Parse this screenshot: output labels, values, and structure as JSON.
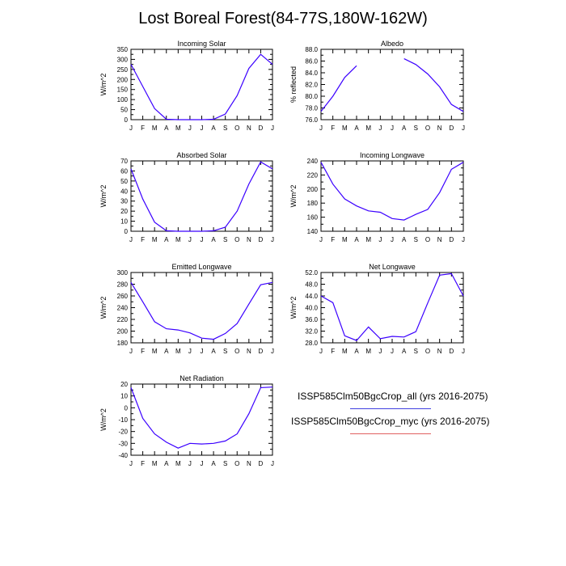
{
  "title": "Lost Boreal Forest(84-77S,180W-162W)",
  "legend": [
    {
      "label": "ISSP585Clm50BgcCrop_all (yrs 2016-2075)",
      "color": "#4040e0"
    },
    {
      "label": "ISSP585Clm50BgcCrop_myc (yrs 2016-2075)",
      "color": "#e06060"
    }
  ],
  "chart_data": [
    {
      "type": "line",
      "title": "Incoming Solar",
      "ylabel": "W/m^2",
      "x": [
        "J",
        "F",
        "M",
        "A",
        "M",
        "J",
        "J",
        "A",
        "S",
        "O",
        "N",
        "D",
        "J"
      ],
      "ylim": [
        0,
        350
      ],
      "yticks": [
        "0",
        "50",
        "100",
        "150",
        "200",
        "250",
        "300",
        "350"
      ],
      "series": [
        {
          "values": [
            275,
            165,
            55,
            2,
            0,
            0,
            0,
            2,
            28,
            120,
            255,
            325,
            275
          ],
          "color": "#3b00ff"
        }
      ]
    },
    {
      "type": "line",
      "title": "Albedo",
      "ylabel": "% reflected",
      "x": [
        "J",
        "F",
        "M",
        "A",
        "M",
        "J",
        "J",
        "A",
        "S",
        "O",
        "N",
        "D",
        "J"
      ],
      "ylim": [
        76,
        88
      ],
      "yticks": [
        "76.0",
        "78.0",
        "80.0",
        "82.0",
        "84.0",
        "86.0",
        "88.0"
      ],
      "series": [
        {
          "values": [
            77.4,
            80.0,
            83.2,
            85.2,
            null,
            null,
            null,
            86.4,
            85.4,
            83.8,
            81.6,
            78.6,
            77.4
          ],
          "color": "#3b00ff"
        }
      ]
    },
    {
      "type": "line",
      "title": "Absorbed Solar",
      "ylabel": "W/m^2",
      "x": [
        "J",
        "F",
        "M",
        "A",
        "M",
        "J",
        "J",
        "A",
        "S",
        "O",
        "N",
        "D",
        "J"
      ],
      "ylim": [
        0,
        70
      ],
      "yticks": [
        "0",
        "10",
        "20",
        "30",
        "40",
        "50",
        "60",
        "70"
      ],
      "series": [
        {
          "values": [
            62,
            32,
            9,
            0.5,
            0,
            0,
            0,
            0.5,
            4,
            20,
            47,
            69,
            62
          ],
          "color": "#3b00ff"
        }
      ]
    },
    {
      "type": "line",
      "title": "Incoming Longwave",
      "ylabel": "W/m^2",
      "x": [
        "J",
        "F",
        "M",
        "A",
        "M",
        "J",
        "J",
        "A",
        "S",
        "O",
        "N",
        "D",
        "J"
      ],
      "ylim": [
        140,
        240
      ],
      "yticks": [
        "140",
        "160",
        "180",
        "200",
        "220",
        "240"
      ],
      "series": [
        {
          "values": [
            238,
            207,
            186,
            176,
            169,
            167,
            158,
            156,
            164,
            171,
            195,
            228,
            238
          ],
          "color": "#3b00ff"
        }
      ]
    },
    {
      "type": "line",
      "title": "Emitted Longwave",
      "ylabel": "W/m^2",
      "x": [
        "J",
        "F",
        "M",
        "A",
        "M",
        "J",
        "J",
        "A",
        "S",
        "O",
        "N",
        "D",
        "J"
      ],
      "ylim": [
        180,
        300
      ],
      "yticks": [
        "180",
        "200",
        "220",
        "240",
        "260",
        "280",
        "300"
      ],
      "series": [
        {
          "values": [
            283,
            250,
            216,
            204,
            202,
            197,
            188,
            186,
            196,
            213,
            246,
            279,
            283
          ],
          "color": "#3b00ff"
        }
      ]
    },
    {
      "type": "line",
      "title": "Net Longwave",
      "ylabel": "W/m^2",
      "x": [
        "J",
        "F",
        "M",
        "A",
        "M",
        "J",
        "J",
        "A",
        "S",
        "O",
        "N",
        "D",
        "J"
      ],
      "ylim": [
        28,
        52
      ],
      "yticks": [
        "28.0",
        "32.0",
        "36.0",
        "40.0",
        "44.0",
        "48.0",
        "52.0"
      ],
      "series": [
        {
          "values": [
            44.0,
            41.7,
            30.4,
            28.8,
            33.4,
            29.4,
            30.2,
            30.0,
            31.8,
            41.6,
            51.1,
            51.6,
            44.0
          ],
          "color": "#3b00ff"
        }
      ]
    },
    {
      "type": "line",
      "title": "Net Radiation",
      "ylabel": "W/m^2",
      "x": [
        "J",
        "F",
        "M",
        "A",
        "M",
        "J",
        "J",
        "A",
        "S",
        "O",
        "N",
        "D",
        "J"
      ],
      "ylim": [
        -40,
        20
      ],
      "yticks": [
        "-40",
        "-30",
        "-20",
        "-10",
        "0",
        "10",
        "20"
      ],
      "series": [
        {
          "values": [
            17,
            -9,
            -22,
            -29,
            -34,
            -30,
            -30.5,
            -30,
            -28,
            -22,
            -5,
            17,
            17.5
          ],
          "color": "#3b00ff"
        }
      ]
    }
  ]
}
